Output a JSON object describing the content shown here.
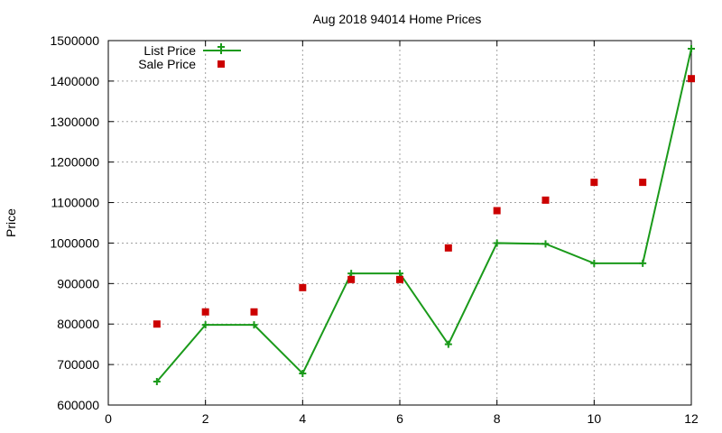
{
  "chart_data": {
    "type": "line",
    "title": "Aug 2018 94014 Home Prices",
    "xlabel": "",
    "ylabel": "Price",
    "xlim": [
      0,
      12
    ],
    "ylim": [
      600000,
      1500000
    ],
    "xticks": [
      0,
      2,
      4,
      6,
      8,
      10,
      12
    ],
    "yticks": [
      600000,
      700000,
      800000,
      900000,
      1000000,
      1100000,
      1200000,
      1300000,
      1400000,
      1500000
    ],
    "grid": true,
    "legend_position": "top-left",
    "series": [
      {
        "name": "List Price",
        "style": "linespoints",
        "color": "#1a9a1a",
        "marker": "plus",
        "x": [
          1,
          2,
          3,
          4,
          5,
          6,
          7,
          8,
          9,
          10,
          11,
          12
        ],
        "y": [
          658000,
          798000,
          798000,
          678000,
          925000,
          925000,
          750000,
          1000000,
          998000,
          950000,
          950000,
          1480000
        ]
      },
      {
        "name": "Sale Price",
        "style": "points",
        "color": "#cc0000",
        "marker": "square",
        "x": [
          1,
          2,
          3,
          4,
          5,
          6,
          7,
          8,
          9,
          10,
          11,
          12
        ],
        "y": [
          800000,
          830000,
          830000,
          890000,
          910000,
          910000,
          988000,
          1080000,
          1106000,
          1150000,
          1150000,
          1406000
        ]
      }
    ]
  }
}
